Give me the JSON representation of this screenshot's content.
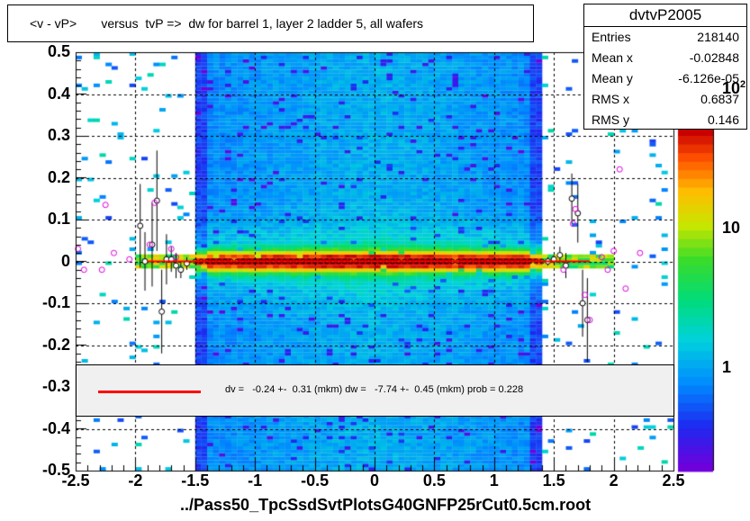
{
  "title": "<v - vP>       versus  tvP =>  dw for barrel 1, layer 2 ladder 5, all wafers",
  "stats": {
    "name": "dvtvP2005",
    "rows": [
      {
        "label": "Entries",
        "value": "218140"
      },
      {
        "label": "Mean x",
        "value": "-0.02848"
      },
      {
        "label": "Mean y",
        "value": "-6.126e-05"
      },
      {
        "label": "RMS x",
        "value": "0.6837"
      },
      {
        "label": "RMS y",
        "value": "0.146"
      }
    ]
  },
  "legend": {
    "text": "dv =   -0.24 +-  0.31 (mkm) dw =   -7.74 +-  0.45 (mkm) prob = 0.228",
    "line_color": "#ff0000"
  },
  "footer": "../Pass50_TpcSsdSvtPlotsG40GNFP25rCut0.5cm.root",
  "chart_data": {
    "type": "heatmap",
    "title": "<v - vP>       versus  tvP =>  dw for barrel 1, layer 2 ladder 5, all wafers",
    "xlabel": "",
    "ylabel": "",
    "xlim": [
      -2.5,
      2.5
    ],
    "ylim": [
      -0.5,
      0.5
    ],
    "x_ticks": [
      "-2.5",
      "-2",
      "-1.5",
      "-1",
      "-0.5",
      "0",
      "0.5",
      "1",
      "1.5",
      "2",
      "2.5"
    ],
    "y_ticks": [
      "-0.5",
      "-0.4",
      "-0.3",
      "-0.2",
      "-0.1",
      "0",
      "0.1",
      "0.2",
      "0.3",
      "0.4",
      "0.5"
    ],
    "z_scale": "log",
    "z_ticks": [
      "1",
      "10",
      "10^2"
    ],
    "z_tick_values": [
      1,
      10,
      100
    ],
    "grid": true,
    "dense_x_range": [
      -1.5,
      1.4
    ],
    "fit_line": {
      "x": [
        -1.9,
        1.8
      ],
      "y": [
        0.0,
        0.0
      ],
      "color": "#ff0000"
    },
    "profile_points": [
      {
        "x": -1.96,
        "y": 0.085,
        "err": 0.1
      },
      {
        "x": -1.92,
        "y": 0.0,
        "err": 0.07
      },
      {
        "x": -1.86,
        "y": 0.04,
        "err": 0.1
      },
      {
        "x": -1.82,
        "y": 0.145,
        "err": 0.12
      },
      {
        "x": -1.78,
        "y": -0.12,
        "err": 0.1
      },
      {
        "x": -1.74,
        "y": 0.005,
        "err": 0.06
      },
      {
        "x": -1.7,
        "y": 0.005,
        "err": 0.03
      },
      {
        "x": -1.66,
        "y": -0.01,
        "err": 0.03
      },
      {
        "x": -1.62,
        "y": -0.02,
        "err": 0.02
      },
      {
        "x": -1.57,
        "y": -0.005,
        "err": 0.015
      },
      {
        "x": 1.45,
        "y": 0.0,
        "err": 0.01
      },
      {
        "x": 1.5,
        "y": 0.005,
        "err": 0.01
      },
      {
        "x": 1.55,
        "y": 0.015,
        "err": 0.02
      },
      {
        "x": 1.6,
        "y": -0.01,
        "err": 0.03
      },
      {
        "x": 1.65,
        "y": 0.15,
        "err": 0.06
      },
      {
        "x": 1.7,
        "y": 0.115,
        "err": 0.07
      },
      {
        "x": 1.74,
        "y": -0.1,
        "err": 0.08
      },
      {
        "x": 1.78,
        "y": -0.14,
        "err": 0.1
      }
    ],
    "mean_points": [
      {
        "x": -2.48,
        "y": 0.03
      },
      {
        "x": -2.43,
        "y": -0.02
      },
      {
        "x": -2.28,
        "y": -0.02
      },
      {
        "x": -2.25,
        "y": 0.135
      },
      {
        "x": -2.18,
        "y": 0.02
      },
      {
        "x": -2.05,
        "y": 0.005
      },
      {
        "x": -1.88,
        "y": 0.04
      },
      {
        "x": -1.84,
        "y": 0.14
      },
      {
        "x": -1.7,
        "y": 0.03
      },
      {
        "x": -1.66,
        "y": 0.01
      },
      {
        "x": 1.58,
        "y": -0.02
      },
      {
        "x": 1.66,
        "y": 0.09
      },
      {
        "x": 1.68,
        "y": 0.125
      },
      {
        "x": 1.76,
        "y": -0.08
      },
      {
        "x": 1.8,
        "y": -0.14
      },
      {
        "x": 1.95,
        "y": -0.02
      },
      {
        "x": 2.0,
        "y": 0.025
      },
      {
        "x": 2.1,
        "y": -0.065
      },
      {
        "x": 2.22,
        "y": 0.02
      },
      {
        "x": 2.05,
        "y": 0.22
      },
      {
        "x": 1.9,
        "y": 0.01
      }
    ]
  }
}
